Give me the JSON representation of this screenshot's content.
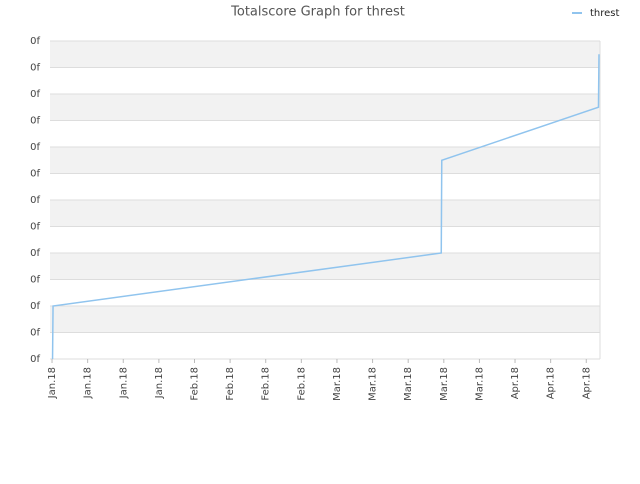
{
  "chart_data": {
    "type": "line",
    "title": "Totalscore Graph for threst",
    "x": [
      0.1,
      0.2,
      76.5,
      76.6,
      107.4,
      107.5
    ],
    "series": [
      {
        "name": "threst",
        "color": "#90c4ee",
        "values": [
          0,
          2,
          4,
          7.5,
          9.5,
          11.5
        ]
      }
    ],
    "xlim": [
      -0.4,
      107.7
    ],
    "xticks": [
      {
        "value": 0,
        "label": "Jan.18"
      },
      {
        "value": 7,
        "label": "Jan.18"
      },
      {
        "value": 14,
        "label": "Jan.18"
      },
      {
        "value": 21,
        "label": "Jan.18"
      },
      {
        "value": 28,
        "label": "Feb.18"
      },
      {
        "value": 35,
        "label": "Feb.18"
      },
      {
        "value": 42,
        "label": "Feb.18"
      },
      {
        "value": 49,
        "label": "Feb.18"
      },
      {
        "value": 56,
        "label": "Mar.18"
      },
      {
        "value": 63,
        "label": "Mar.18"
      },
      {
        "value": 70,
        "label": "Mar.18"
      },
      {
        "value": 77,
        "label": "Mar.18"
      },
      {
        "value": 84,
        "label": "Mar.18"
      },
      {
        "value": 91,
        "label": "Apr.18"
      },
      {
        "value": 98,
        "label": "Apr.18"
      },
      {
        "value": 105,
        "label": "Apr.18"
      }
    ],
    "ylim": [
      0,
      12
    ],
    "yticks": [
      {
        "value": 0,
        "label": "0f"
      },
      {
        "value": 1,
        "label": "0f"
      },
      {
        "value": 2,
        "label": "0f"
      },
      {
        "value": 3,
        "label": "0f"
      },
      {
        "value": 4,
        "label": "0f"
      },
      {
        "value": 5,
        "label": "0f"
      },
      {
        "value": 6,
        "label": "0f"
      },
      {
        "value": 7,
        "label": "0f"
      },
      {
        "value": 8,
        "label": "0f"
      },
      {
        "value": 9,
        "label": "0f"
      },
      {
        "value": 10,
        "label": "0f"
      },
      {
        "value": 11,
        "label": "0f"
      },
      {
        "value": 12,
        "label": "0f"
      }
    ],
    "grid": true,
    "legend": "top-right"
  }
}
